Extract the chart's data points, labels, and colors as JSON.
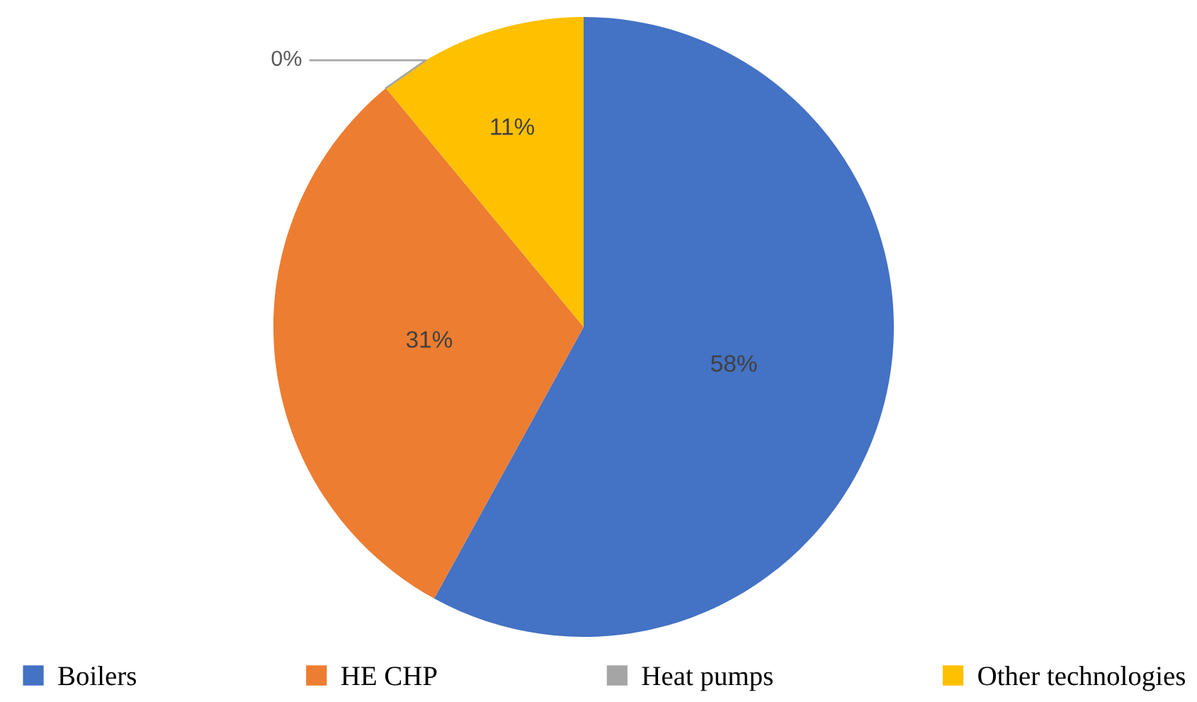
{
  "chart_data": {
    "type": "pie",
    "categories": [
      "Boilers",
      "HE CHP",
      "Heat pumps",
      "Other technologies"
    ],
    "values": [
      58,
      31,
      0,
      11
    ],
    "colors": [
      "#4472c4",
      "#ed7d31",
      "#a5a5a5",
      "#ffc000"
    ],
    "value_labels": [
      "58%",
      "31%",
      "0%",
      "11%"
    ],
    "legend": "bottom"
  }
}
